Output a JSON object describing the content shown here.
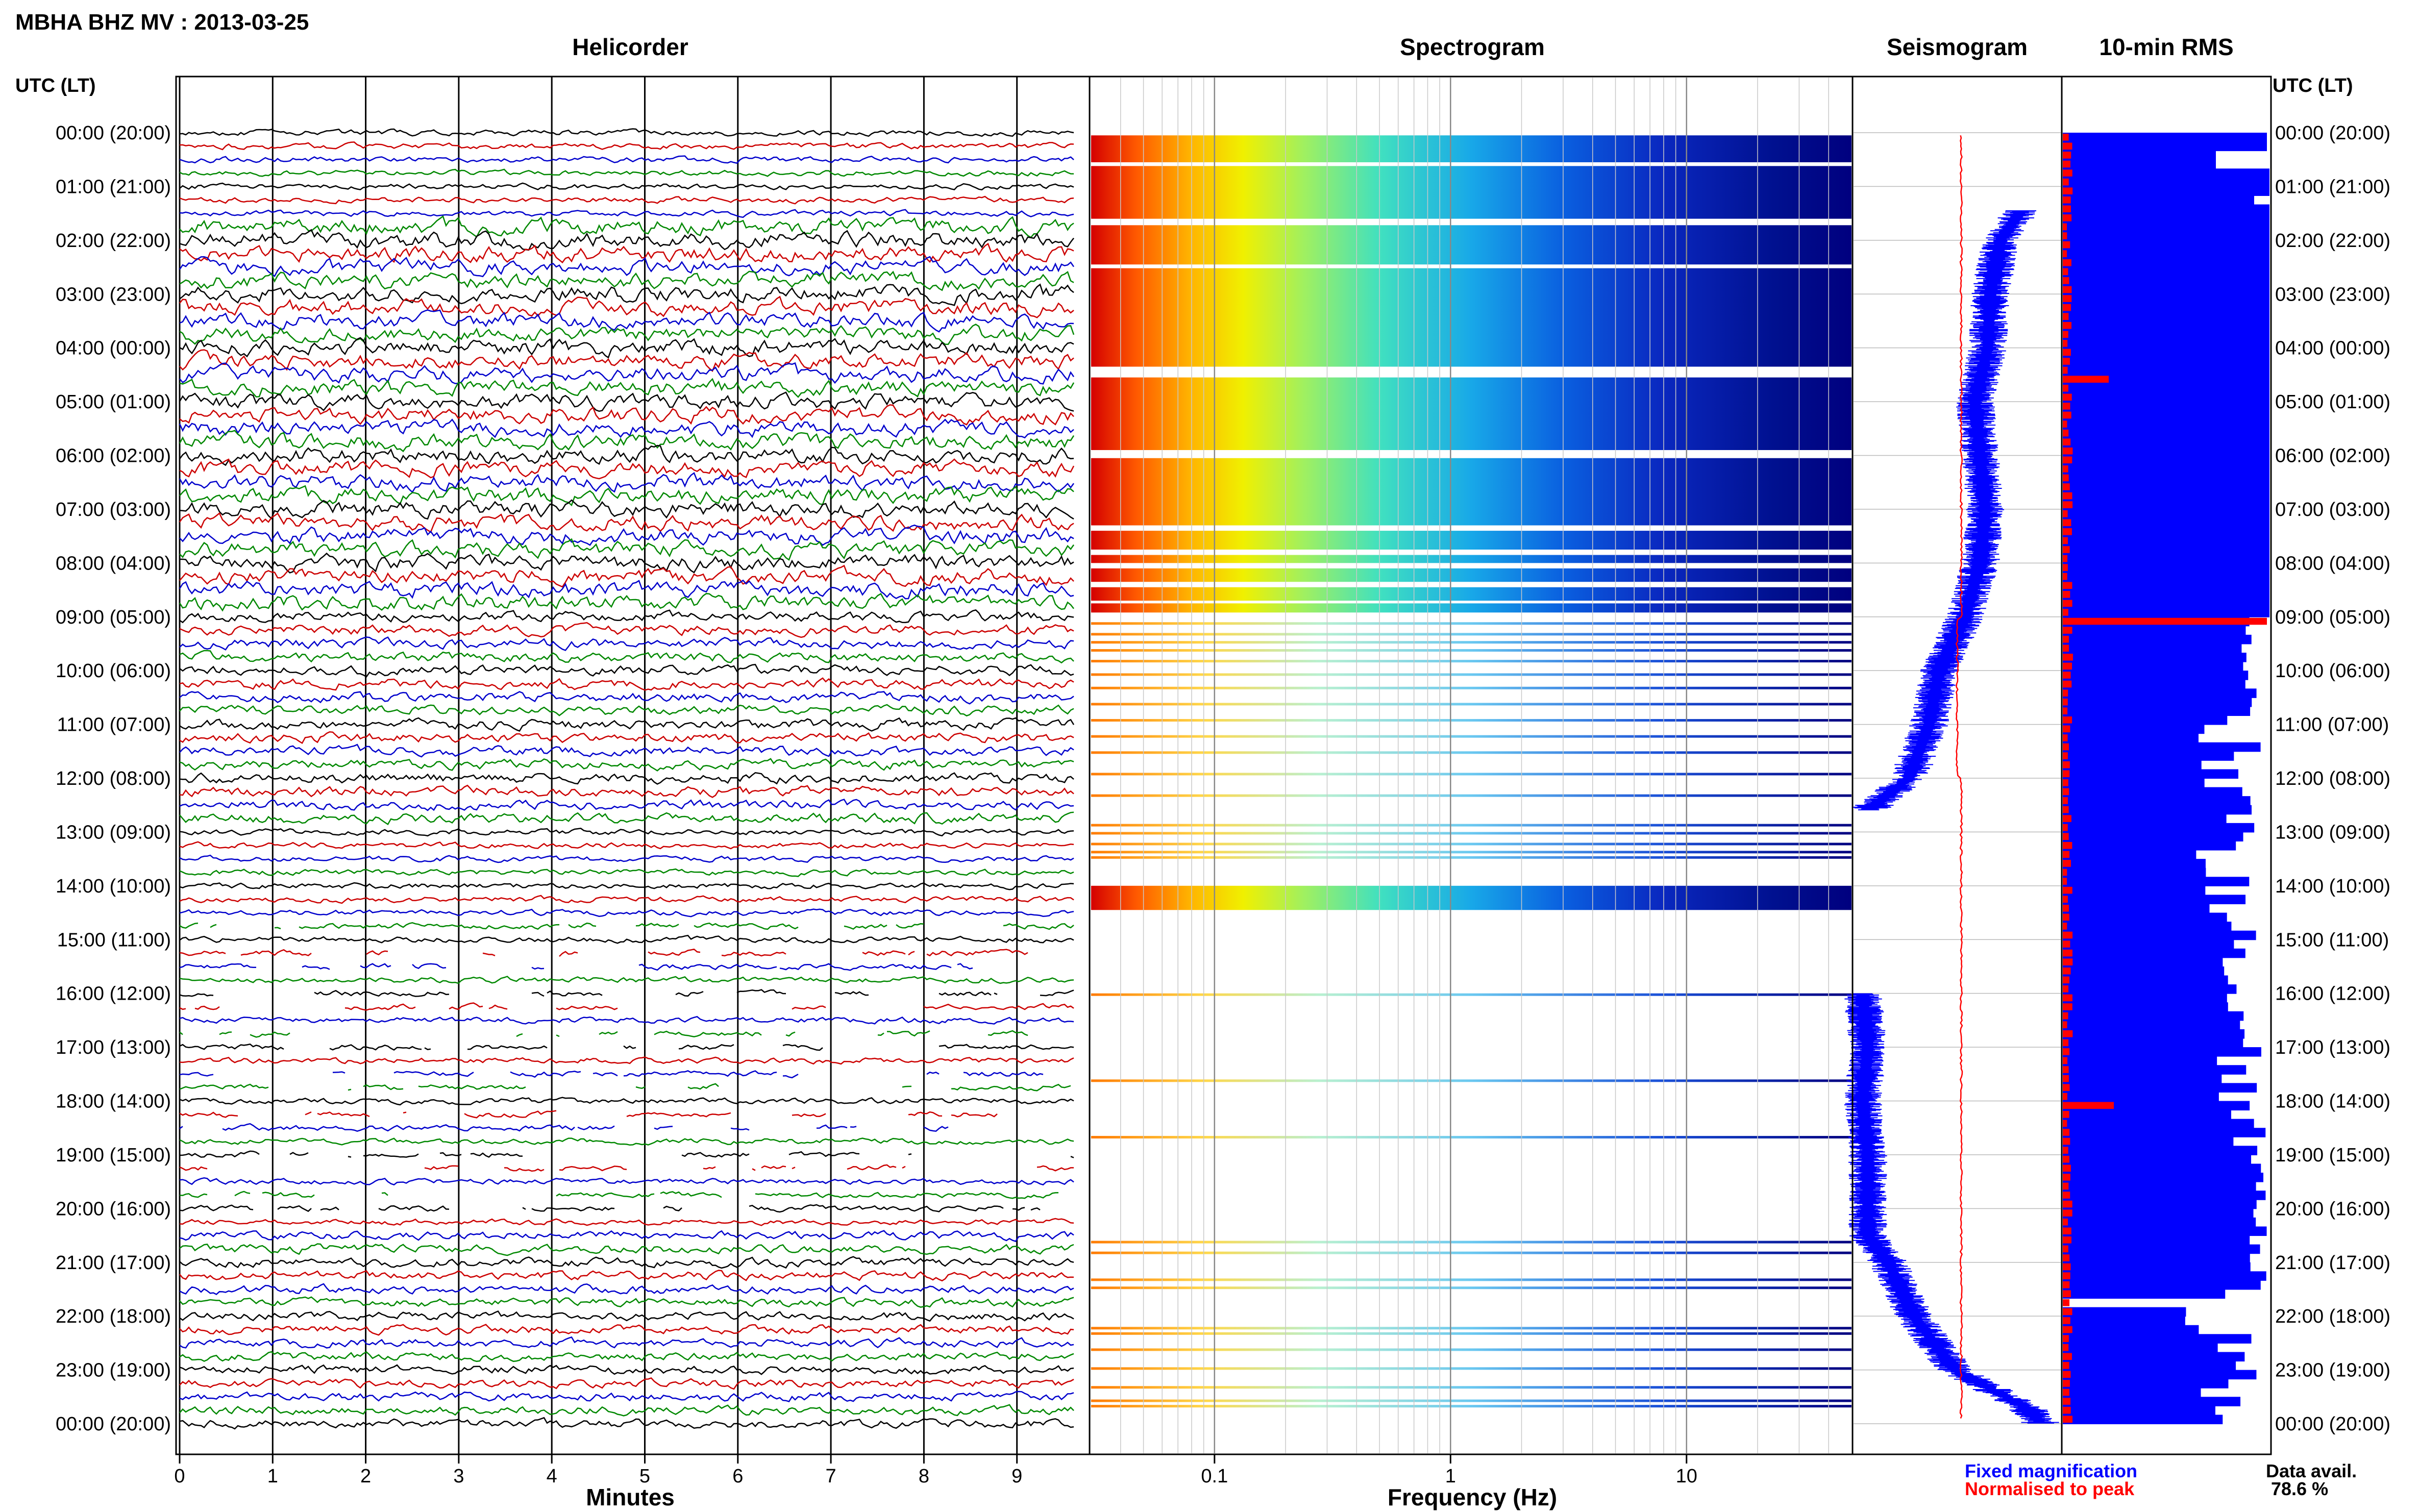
{
  "header": {
    "station": "MBHA BHZ MV : 2013-03-25",
    "time_label_left": "UTC (LT)",
    "time_label_right": "UTC (LT)"
  },
  "panels": {
    "helicorder": "Helicorder",
    "spectrogram": "Spectrogram",
    "seismogram": "Seismogram",
    "rms": "10-min RMS"
  },
  "axes": {
    "minutes_label": "Minutes",
    "frequency_label": "Frequency (Hz)",
    "minute_ticks": [
      "0",
      "1",
      "2",
      "3",
      "4",
      "5",
      "6",
      "7",
      "8",
      "9"
    ],
    "freq_ticks": [
      "0.1",
      "1",
      "10"
    ],
    "hour_labels": [
      "00:00 (20:00)",
      "01:00 (21:00)",
      "02:00 (22:00)",
      "03:00 (23:00)",
      "04:00 (00:00)",
      "05:00 (01:00)",
      "06:00 (02:00)",
      "07:00 (03:00)",
      "08:00 (04:00)",
      "09:00 (05:00)",
      "10:00 (06:00)",
      "11:00 (07:00)",
      "12:00 (08:00)",
      "13:00 (09:00)",
      "14:00 (10:00)",
      "15:00 (11:00)",
      "16:00 (12:00)",
      "17:00 (13:00)",
      "18:00 (14:00)",
      "19:00 (15:00)",
      "20:00 (16:00)",
      "21:00 (17:00)",
      "22:00 (18:00)",
      "23:00 (19:00)",
      "00:00 (20:00)"
    ]
  },
  "legend": {
    "fixed": "Fixed magnification",
    "normalised": "Normalised to peak",
    "data_avail_label": "Data avail.",
    "data_avail_value": "78.6 %"
  },
  "colors": {
    "helicorder_traces": [
      "#000000",
      "#cc0000",
      "#0000cc",
      "#008800"
    ],
    "seismogram_fixed": "#0000ff",
    "seismogram_normalised": "#ff0000",
    "rms_bar": "#0000ff",
    "rms_normalised": "#ff0000",
    "spectrogram_low": "#00007f",
    "spectrogram_high": "#d40000"
  },
  "chart_data": [
    {
      "type": "line",
      "title": "Helicorder",
      "xlabel": "Minutes",
      "xlim": [
        0,
        10
      ],
      "ylim": [
        "00:00 (20:00)",
        "00:00 (20:00)"
      ],
      "grid": true
    },
    {
      "type": "heatmap",
      "title": "Spectrogram",
      "xlabel": "Frequency (Hz)",
      "xscale": "log",
      "xlim": [
        0.03,
        50
      ],
      "ylim": [
        "00:00 (20:00)",
        "00:00 (20:00)"
      ]
    },
    {
      "type": "line",
      "title": "Seismogram",
      "series": [
        {
          "name": "Fixed magnification"
        },
        {
          "name": "Normalised to peak"
        }
      ]
    },
    {
      "type": "bar",
      "title": "10-min RMS",
      "orientation": "horizontal",
      "data_availability_percent": 78.6,
      "ylim": [
        "00:00 (20:00)",
        "00:00 (20:00)"
      ]
    }
  ]
}
